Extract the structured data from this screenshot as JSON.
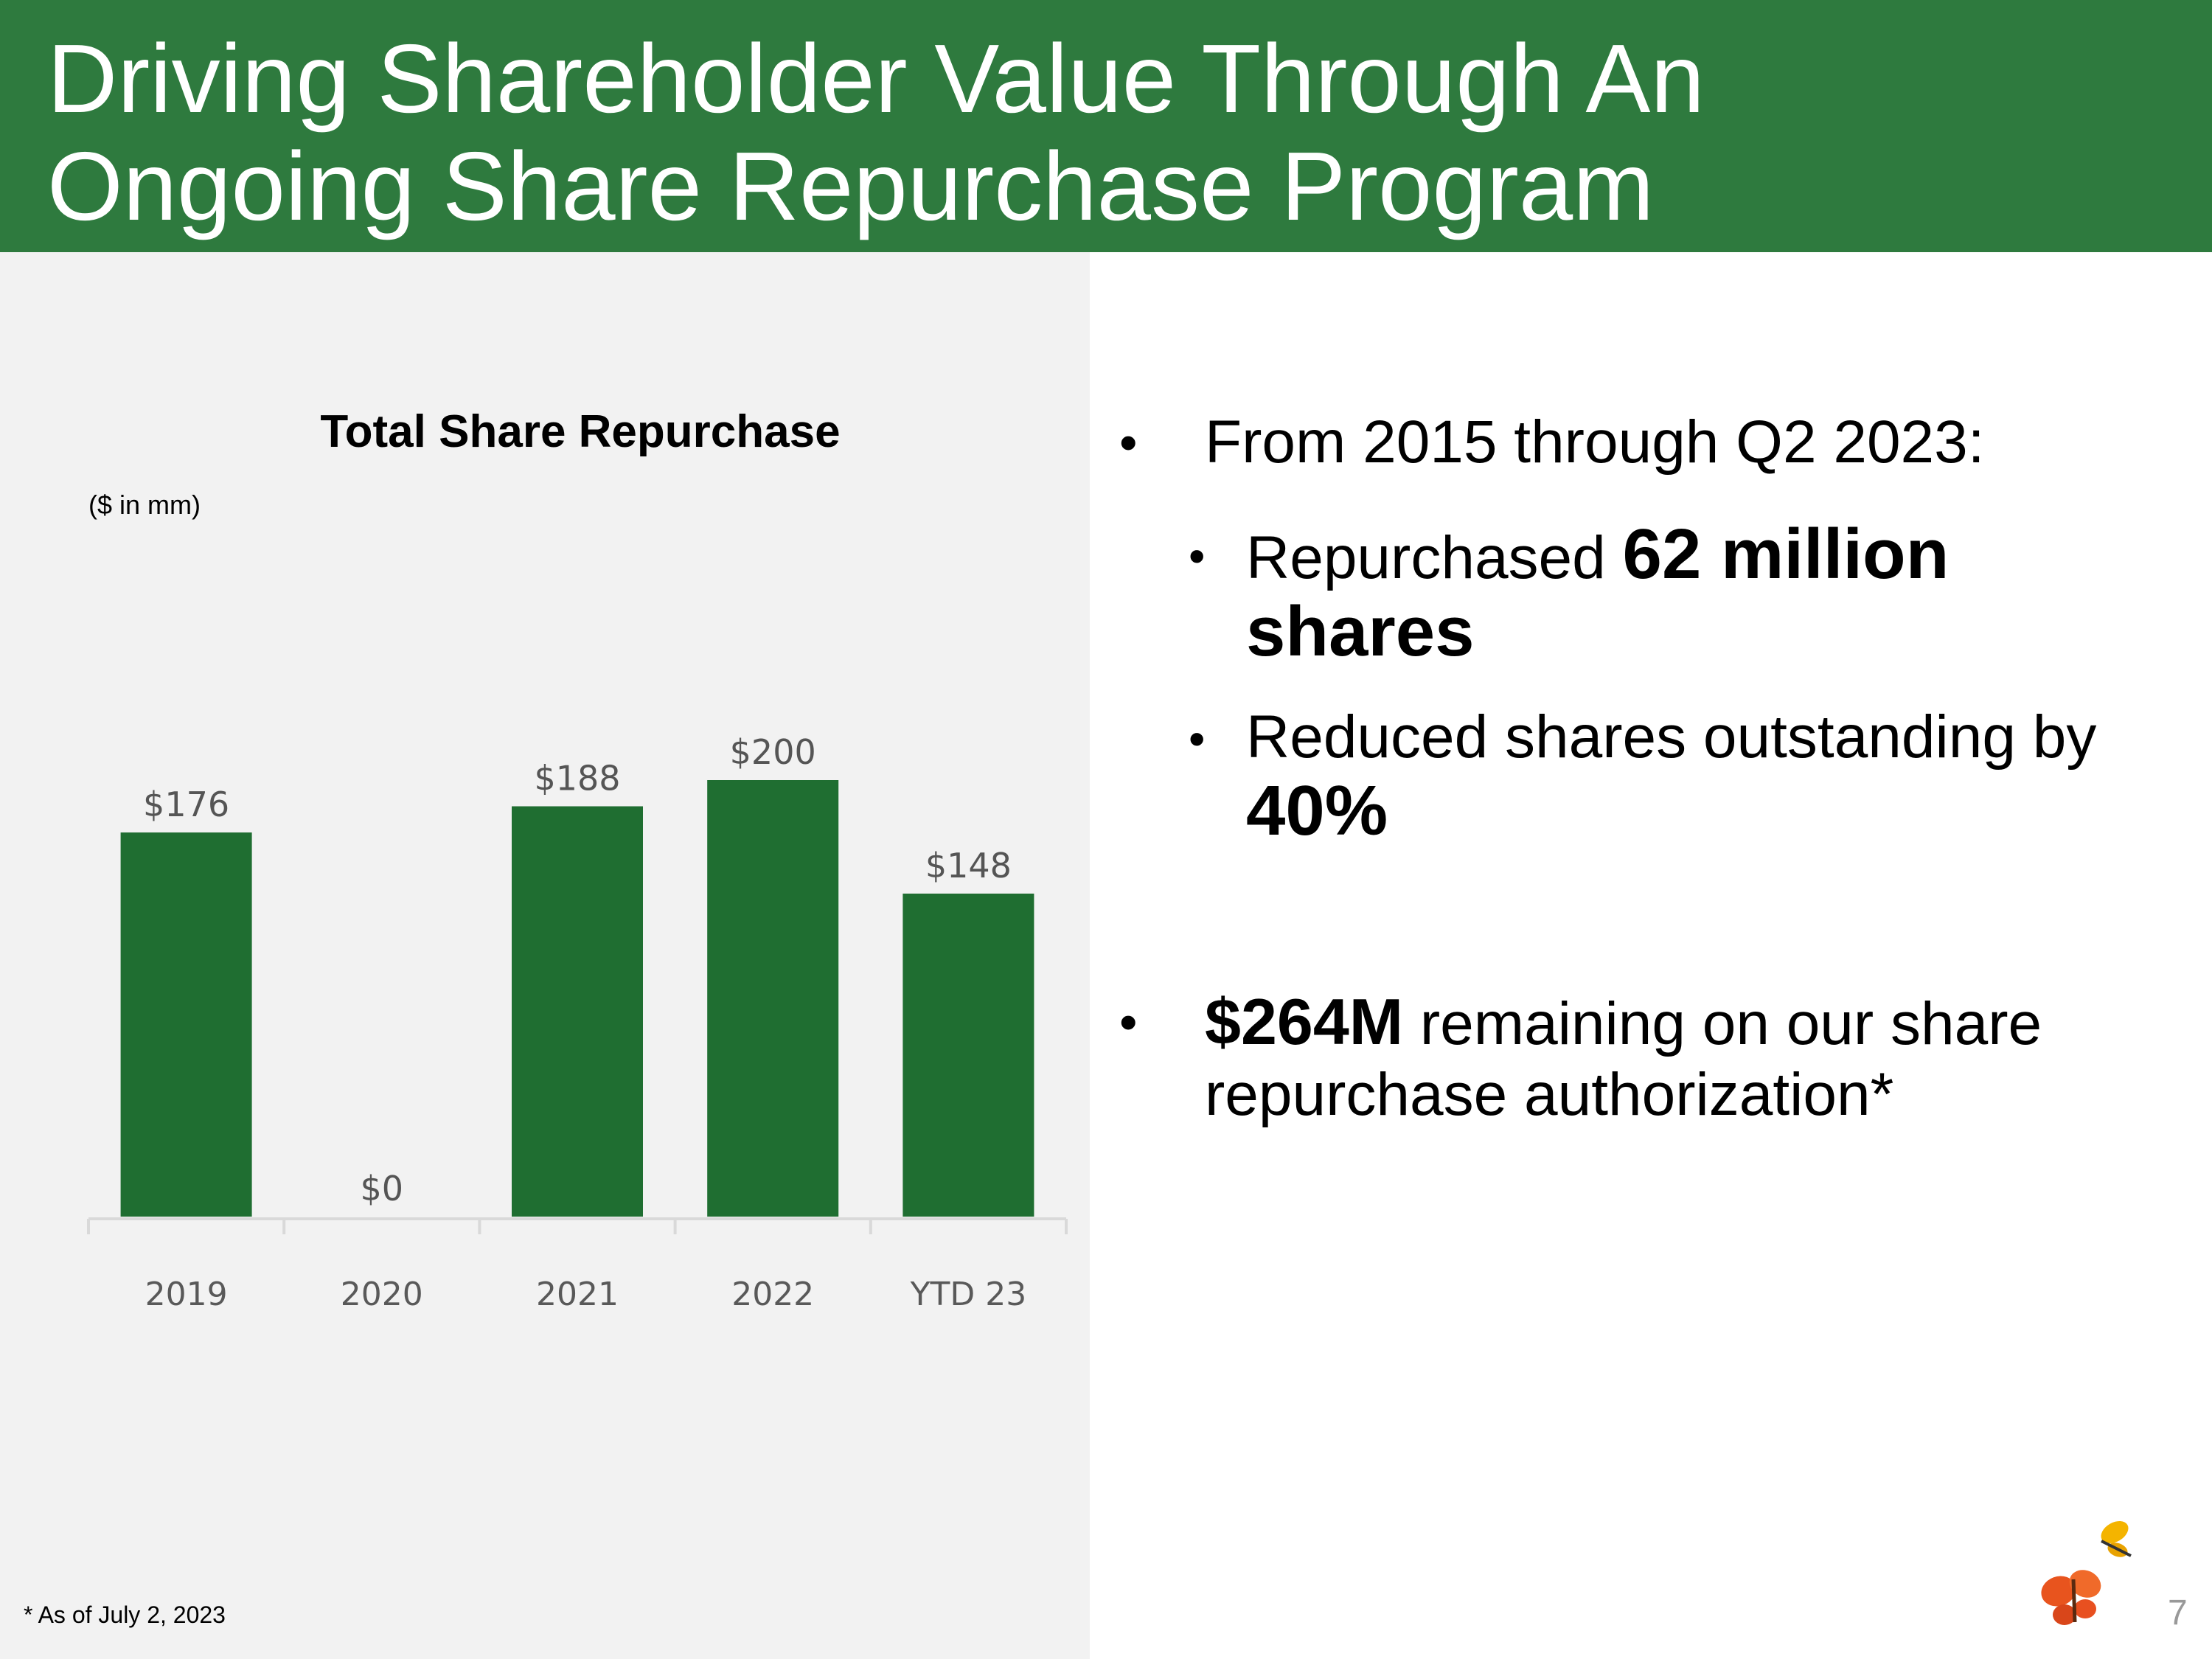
{
  "slide": {
    "title_line1": "Driving Shareholder Value Through An",
    "title_line2": "Ongoing Share Repurchase Program",
    "page_number": "7",
    "footnote": "* As of July 2, 2023",
    "colors": {
      "header": "#2e7a3e",
      "bar": "#1f6e31",
      "panel": "#f2f2f2"
    }
  },
  "bullets": {
    "b1_text": "From 2015 through Q2 2023:",
    "b2_prefix": "Repurchased ",
    "b2_bold": "62 million shares",
    "b3_prefix": "Reduced shares outstanding by ",
    "b3_bold": "40%",
    "b4_bold": "$264M",
    "b4_suffix": " remaining on our share repurchase authorization*",
    "marker": "•"
  },
  "chart_data": {
    "type": "bar",
    "title": "Total Share Repurchase",
    "units_label": "($ in mm)",
    "categories": [
      "2019",
      "2020",
      "2021",
      "2022",
      "YTD 23"
    ],
    "values": [
      176,
      0,
      188,
      200,
      148
    ],
    "value_labels": [
      "$176",
      "$0",
      "$188",
      "$200",
      "$148"
    ],
    "xlabel": "",
    "ylabel": "",
    "ylim": [
      0,
      200
    ],
    "grid": false
  }
}
